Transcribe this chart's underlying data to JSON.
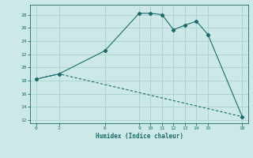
{
  "xlabel": "Humidex (Indice chaleur)",
  "bg_color": "#cce9e7",
  "grid_color": "#add4d0",
  "line_color": "#1a6b6b",
  "xlim": [
    -0.5,
    18.5
  ],
  "ylim": [
    11.5,
    29.5
  ],
  "xticks": [
    0,
    2,
    6,
    9,
    10,
    11,
    12,
    13,
    14,
    15,
    18
  ],
  "yticks": [
    12,
    14,
    16,
    18,
    20,
    22,
    24,
    26,
    28
  ],
  "line1_x": [
    0,
    2,
    6,
    9,
    10,
    11,
    12,
    13,
    14,
    15,
    18
  ],
  "line1_y": [
    18.2,
    19.0,
    22.5,
    28.2,
    28.2,
    28.0,
    25.7,
    26.4,
    27.0,
    25.0,
    12.5
  ],
  "line2_x": [
    0,
    2,
    18
  ],
  "line2_y": [
    18.2,
    19.0,
    12.5
  ]
}
